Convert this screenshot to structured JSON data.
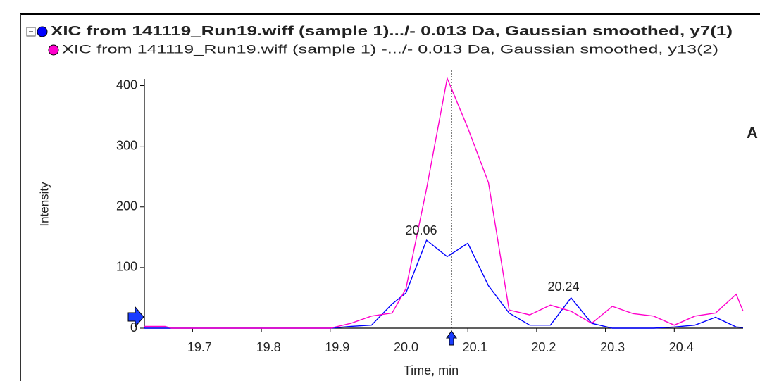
{
  "chart_data": {
    "type": "line",
    "legend": [
      "XIC from 141119_Run19.wiff (sample 1).../- 0.013 Da, Gaussian smoothed, y7(1)",
      "XIC from 141119_Run19.wiff (sample 1) -.../- 0.013 Da, Gaussian smoothed, y13(2)"
    ],
    "x": [
      19.63,
      19.66,
      19.67,
      19.9,
      19.93,
      19.96,
      19.99,
      20.01,
      20.04,
      20.07,
      20.1,
      20.13,
      20.16,
      20.19,
      20.22,
      20.25,
      20.28,
      20.31,
      20.34,
      20.37,
      20.4,
      20.43,
      20.46,
      20.49,
      20.5
    ],
    "series": [
      {
        "name": "y7(1)",
        "color": "#0000ff",
        "values": [
          0,
          0,
          0,
          0,
          3,
          5,
          40,
          58,
          145,
          118,
          140,
          70,
          25,
          5,
          5,
          50,
          8,
          0,
          0,
          0,
          2,
          5,
          18,
          2,
          1
        ]
      },
      {
        "name": "y13(2)",
        "color": "#ff00cc",
        "values": [
          3,
          3,
          0,
          0,
          8,
          20,
          25,
          65,
          230,
          412,
          330,
          240,
          30,
          22,
          38,
          28,
          8,
          36,
          24,
          20,
          5,
          20,
          25,
          56,
          28
        ]
      }
    ],
    "xlabel": "Time, min",
    "ylabel": "Intensity",
    "xlim": [
      19.63,
      20.5
    ],
    "ylim": [
      0,
      425
    ],
    "xticks": [
      19.7,
      19.8,
      19.9,
      {
        "value": 20,
        "label": "20.0"
      },
      20.1,
      20.2,
      20.3,
      20.4
    ],
    "yticks": [
      0,
      100,
      200,
      300,
      400
    ],
    "annotations": [
      "20.06",
      "20.24"
    ],
    "panel_label": "A"
  }
}
